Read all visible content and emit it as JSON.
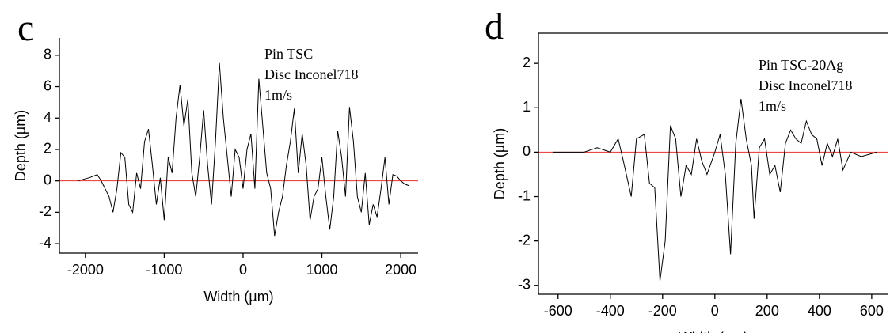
{
  "chart_data": [
    {
      "type": "line",
      "panel_label": "c",
      "xlabel": "Width (µm)",
      "ylabel": "Depth (µm)",
      "annotations": [
        "Pin TSC",
        "Disc Inconel718",
        "1m/s"
      ],
      "xlim": [
        -2330,
        2220
      ],
      "xticks": [
        -2000,
        -1000,
        0,
        1000,
        2000
      ],
      "ylim": [
        -4.6,
        9.1
      ],
      "yticks": [
        -4,
        -2,
        0,
        2,
        4,
        6,
        8
      ],
      "zero_line_color": "#e8302a",
      "series": [
        {
          "color": "#000000",
          "x": [
            -2100,
            -1950,
            -1850,
            -1800,
            -1700,
            -1650,
            -1600,
            -1550,
            -1500,
            -1450,
            -1400,
            -1350,
            -1300,
            -1250,
            -1200,
            -1150,
            -1100,
            -1050,
            -1000,
            -950,
            -900,
            -850,
            -800,
            -750,
            -700,
            -650,
            -600,
            -550,
            -500,
            -450,
            -400,
            -350,
            -300,
            -250,
            -200,
            -150,
            -100,
            -50,
            0,
            50,
            100,
            150,
            200,
            250,
            300,
            350,
            400,
            450,
            500,
            550,
            600,
            650,
            700,
            750,
            800,
            850,
            900,
            950,
            1000,
            1050,
            1100,
            1150,
            1200,
            1250,
            1300,
            1350,
            1400,
            1450,
            1500,
            1550,
            1600,
            1650,
            1700,
            1750,
            1800,
            1850,
            1900,
            1950,
            2000,
            2050,
            2100
          ],
          "values": [
            0,
            0.2,
            0.4,
            0,
            -1,
            -2,
            -0.5,
            1.8,
            1.5,
            -1.5,
            -2,
            0.5,
            -0.5,
            2.5,
            3.3,
            1,
            -1.5,
            0.2,
            -2.5,
            1.5,
            0.5,
            4,
            6.1,
            3.5,
            5.2,
            0.5,
            -1,
            1.5,
            4.5,
            1,
            -1.5,
            2.5,
            7.5,
            4,
            1.5,
            -1,
            2,
            1.5,
            -0.5,
            2,
            3,
            -0.5,
            6.5,
            3.5,
            0.5,
            -0.5,
            -3.5,
            -2,
            -1,
            1,
            2.5,
            4.6,
            0.5,
            3,
            1,
            -2.5,
            -1,
            -0.5,
            1.5,
            -1,
            -3.1,
            -1,
            3.2,
            1.5,
            -1,
            4.7,
            2.5,
            -1,
            -2,
            0.5,
            -2.8,
            -1.5,
            -2.3,
            -0.5,
            1.5,
            -1.5,
            0.4,
            0.3,
            0,
            -0.2,
            -0.3
          ]
        }
      ]
    },
    {
      "type": "line",
      "panel_label": "d",
      "xlabel": "Width (µm)",
      "ylabel": "Depth (µm)",
      "annotations": [
        "Pin TSC-20Ag",
        "Disc Inconel718",
        "1m/s"
      ],
      "xlim": [
        -675,
        664
      ],
      "xticks": [
        -600,
        -400,
        -200,
        0,
        200,
        400,
        600
      ],
      "ylim": [
        -3.2,
        2.68
      ],
      "yticks": [
        -3,
        -2,
        -1,
        0,
        1,
        2
      ],
      "zero_line_color": "#e8302a",
      "series": [
        {
          "color": "#000000",
          "x": [
            -620,
            -500,
            -450,
            -400,
            -370,
            -350,
            -320,
            -300,
            -270,
            -250,
            -230,
            -210,
            -190,
            -170,
            -150,
            -130,
            -110,
            -90,
            -70,
            -50,
            -30,
            0,
            20,
            40,
            60,
            80,
            100,
            120,
            140,
            150,
            170,
            190,
            210,
            230,
            250,
            270,
            290,
            310,
            330,
            350,
            370,
            390,
            410,
            430,
            450,
            470,
            490,
            520,
            560,
            620
          ],
          "values": [
            0,
            0,
            0.1,
            0,
            0.3,
            -0.2,
            -1,
            0.3,
            0.4,
            -0.7,
            -0.8,
            -2.9,
            -2,
            0.6,
            0.3,
            -1,
            -0.3,
            -0.5,
            0.3,
            -0.2,
            -0.5,
            0,
            0.4,
            -0.5,
            -2.3,
            0.2,
            1.2,
            0.3,
            -0.3,
            -1.5,
            0.1,
            0.3,
            -0.5,
            -0.3,
            -0.9,
            0.2,
            0.5,
            0.3,
            0.2,
            0.7,
            0.4,
            0.3,
            -0.3,
            0.2,
            -0.1,
            0.3,
            -0.4,
            0,
            -0.1,
            0
          ]
        }
      ]
    }
  ]
}
